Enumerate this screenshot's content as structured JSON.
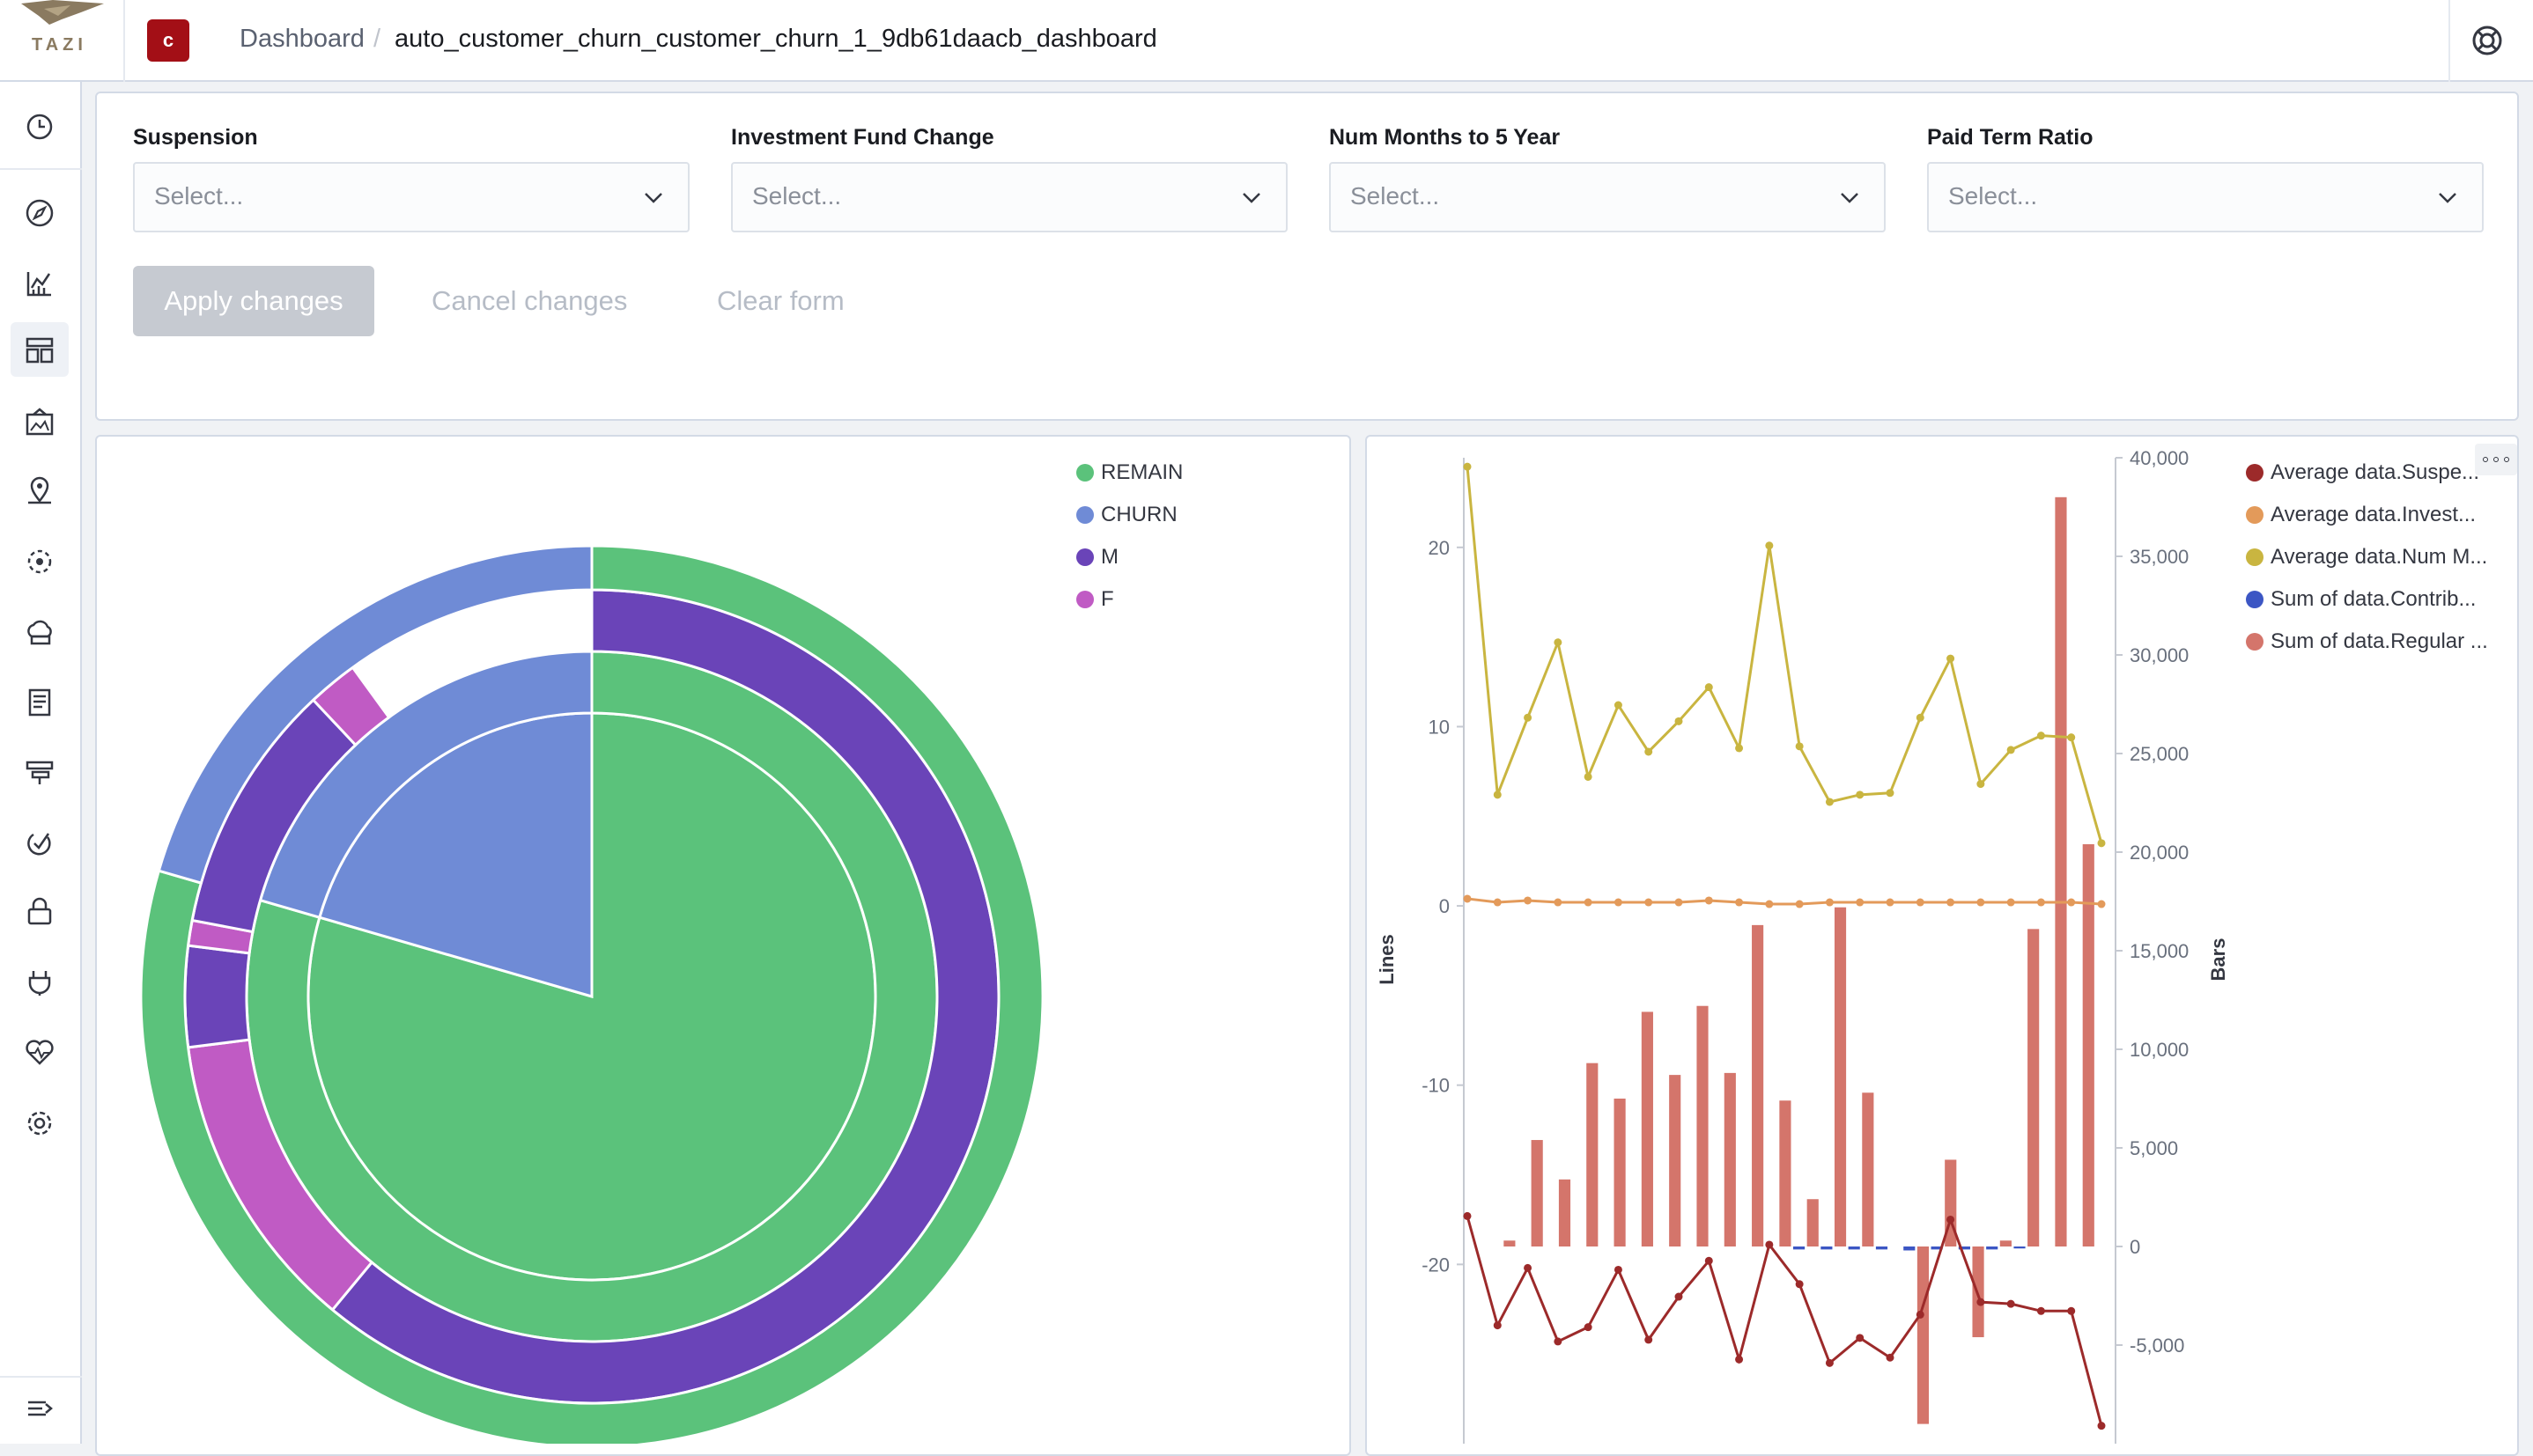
{
  "header": {
    "logo_text": "TAZI",
    "space_initial": "c",
    "breadcrumb_root": "Dashboard",
    "breadcrumb_separator": "/",
    "breadcrumb_current": "auto_customer_churn_customer_churn_1_9db61daacb_dashboard"
  },
  "sidebar": {
    "items": [
      "clock-icon",
      "compass-icon",
      "visualize-icon",
      "dashboard-icon",
      "canvas-icon",
      "maps-icon",
      "ml-icon",
      "infrastructure-icon",
      "logs-icon",
      "apm-icon",
      "uptime-icon",
      "siem-icon",
      "dev-tools-icon",
      "monitoring-icon",
      "management-icon"
    ],
    "collapse_icon": "collapse-icon"
  },
  "filters": [
    {
      "label": "Suspension",
      "placeholder": "Select..."
    },
    {
      "label": "Investment Fund Change",
      "placeholder": "Select..."
    },
    {
      "label": "Num Months to 5 Year",
      "placeholder": "Select..."
    },
    {
      "label": "Paid Term Ratio",
      "placeholder": "Select..."
    }
  ],
  "actions": {
    "apply": "Apply changes",
    "cancel": "Cancel changes",
    "clear": "Clear form"
  },
  "colors": {
    "remain": "#5bc27b",
    "churn": "#6f8bd6",
    "male": "#6a44b8",
    "female": "#c05bc4",
    "line_suspension": "#9c2a2a",
    "line_investment": "#e39a5a",
    "line_num_months": "#c9b540",
    "bar_regular": "#d4756b",
    "bar_contrib": "#3c56c4"
  },
  "pie_legend": [
    {
      "label": "REMAIN",
      "color": "#5bc27b"
    },
    {
      "label": "CHURN",
      "color": "#6f8bd6"
    },
    {
      "label": "M",
      "color": "#6a44b8"
    },
    {
      "label": "F",
      "color": "#c05bc4"
    }
  ],
  "chart_data": [
    {
      "type": "pie",
      "subtype": "sunburst",
      "rings": [
        {
          "level": 1,
          "slices": [
            {
              "label": "REMAIN",
              "fraction": 0.795
            },
            {
              "label": "CHURN",
              "fraction": 0.205
            }
          ]
        },
        {
          "level": 2,
          "slices": [
            {
              "parent": "REMAIN",
              "label": "REMAIN",
              "fraction": 0.795
            },
            {
              "parent": "CHURN",
              "label": "CHURN",
              "fraction": 0.205
            }
          ]
        },
        {
          "level": 3,
          "slices": [
            {
              "label": "M",
              "fraction": 0.61
            },
            {
              "label": "F",
              "fraction": 0.12
            },
            {
              "label": "M",
              "fraction": 0.04
            },
            {
              "label": "F",
              "fraction": 0.01
            },
            {
              "label": "M",
              "fraction": 0.1
            },
            {
              "label": "F",
              "fraction": 0.02
            }
          ]
        }
      ]
    },
    {
      "type": "line",
      "y_left_label": "Lines",
      "y_right_label": "Bars",
      "y_left_ticks": [
        "20",
        "10",
        "0",
        "-10",
        "-20"
      ],
      "y_right_ticks": [
        "40,000",
        "35,000",
        "30,000",
        "25,000",
        "20,000",
        "15,000",
        "10,000",
        "5,000",
        "0",
        "-5,000"
      ],
      "ylim_left": [
        -30,
        25
      ],
      "ylim_right": [
        -10000,
        40000
      ],
      "legend": [
        {
          "label": "Average data.Suspe...",
          "color": "#9c2a2a"
        },
        {
          "label": "Average data.Invest...",
          "color": "#e39a5a"
        },
        {
          "label": "Average data.Num M...",
          "color": "#c9b540"
        },
        {
          "label": "Sum of data.Contrib...",
          "color": "#3c56c4"
        },
        {
          "label": "Sum of data.Regular ...",
          "color": "#d4756b"
        }
      ],
      "series": [
        {
          "name": "Average data.Num M...",
          "kind": "line",
          "values": [
            24.5,
            6.2,
            10.5,
            14.7,
            7.2,
            11.2,
            8.6,
            10.3,
            12.2,
            8.8,
            20.1,
            8.9,
            5.8,
            6.2,
            6.3,
            10.5,
            13.8,
            6.8,
            8.7,
            9.5,
            9.4,
            3.5
          ]
        },
        {
          "name": "Average data.Invest...",
          "kind": "line",
          "values": [
            0.4,
            0.2,
            0.3,
            0.2,
            0.2,
            0.2,
            0.2,
            0.2,
            0.3,
            0.2,
            0.1,
            0.1,
            0.2,
            0.2,
            0.2,
            0.2,
            0.2,
            0.2,
            0.2,
            0.2,
            0.2,
            0.1
          ]
        },
        {
          "name": "Average data.Suspe...",
          "kind": "line",
          "values": [
            -17.3,
            -23.4,
            -20.2,
            -24.3,
            -23.5,
            -20.3,
            -24.2,
            -21.8,
            -19.8,
            -25.3,
            -18.9,
            -21.1,
            -25.5,
            -24.1,
            -25.2,
            -22.8,
            -17.5,
            -22.1,
            -22.2,
            -22.6,
            -22.6,
            -29.0
          ]
        },
        {
          "name": "Sum of data.Regular ...",
          "kind": "bar",
          "values": [
            0,
            300,
            5400,
            3400,
            9300,
            7500,
            11900,
            8700,
            12200,
            8800,
            16300,
            7400,
            2400,
            17200,
            7800,
            0,
            -9000,
            4400,
            -4600,
            300,
            16100,
            38000,
            20400
          ]
        },
        {
          "name": "Sum of data.Contrib...",
          "kind": "bar",
          "values": [
            0,
            0,
            0,
            0,
            0,
            0,
            0,
            0,
            0,
            0,
            0,
            -150,
            -150,
            -150,
            -150,
            -200,
            -150,
            -150,
            -150,
            -100,
            0,
            0,
            0
          ]
        }
      ]
    }
  ]
}
